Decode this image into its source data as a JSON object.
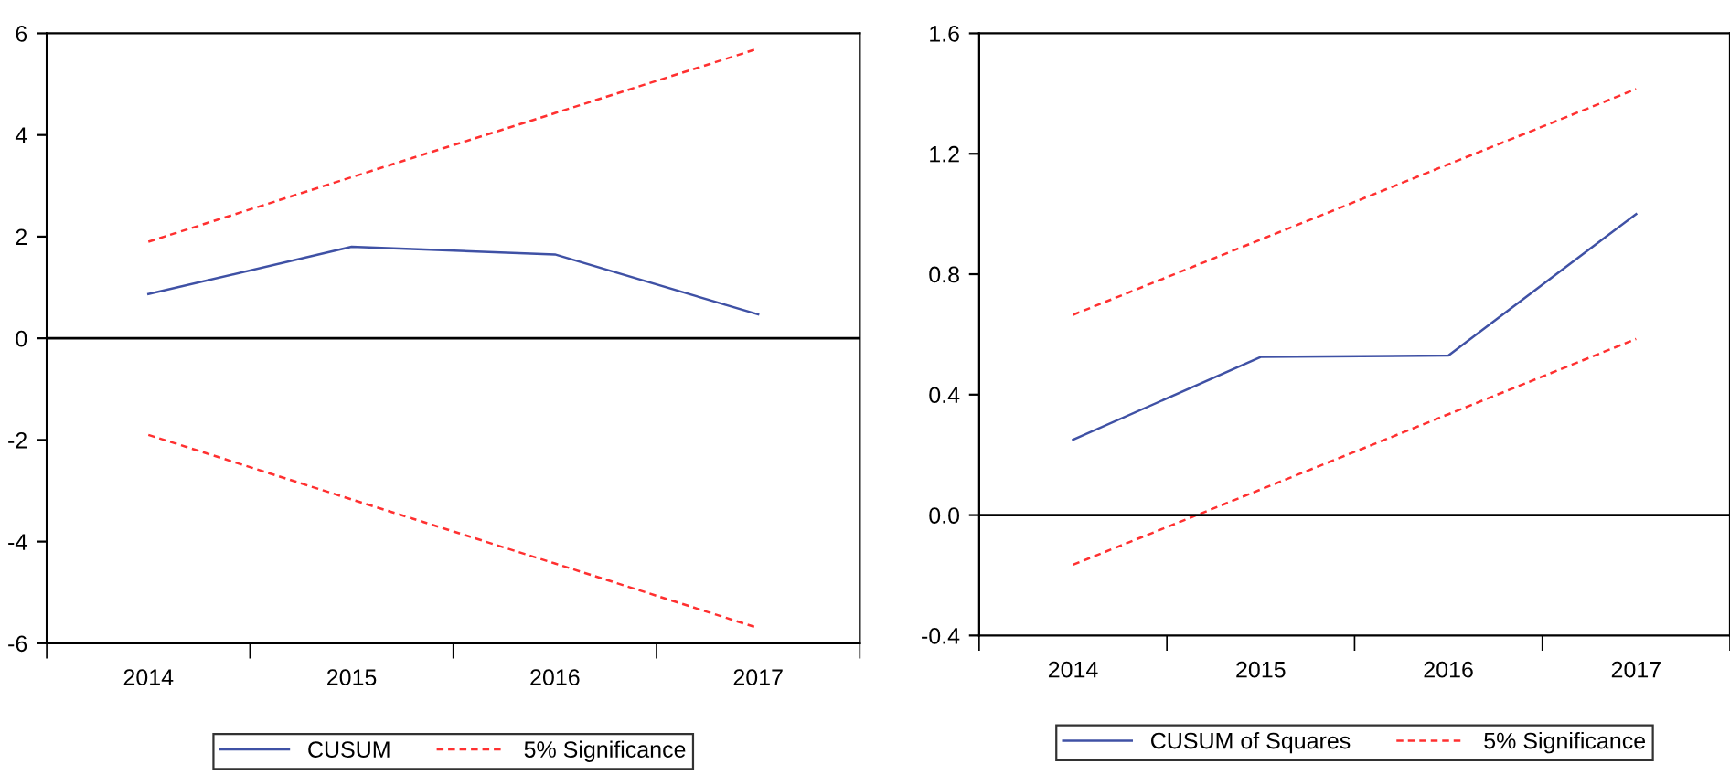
{
  "chart_data": [
    {
      "type": "line",
      "categories": [
        "2014",
        "2015",
        "2016",
        "2017"
      ],
      "ylim": [
        -6,
        6
      ],
      "yticks": [
        -6,
        -4,
        -2,
        0,
        2,
        4,
        6
      ],
      "grid": false,
      "legend": "bottom",
      "ref_lines": [
        {
          "axis": "y",
          "value": 0,
          "color": "#000000",
          "line_style": "solid"
        }
      ],
      "series": [
        {
          "name": "CUSUM",
          "color": "#3f51a5",
          "values": [
            0.87,
            1.8,
            1.65,
            0.47
          ],
          "line_style": "solid"
        },
        {
          "name": "5% Significance",
          "color": "#ff3030",
          "values": [
            1.9,
            3.17,
            4.43,
            5.7
          ],
          "line_style": "dashed"
        },
        {
          "color": "#ff3030",
          "values": [
            -1.9,
            -3.17,
            -4.43,
            -5.7
          ],
          "line_style": "dashed"
        }
      ]
    },
    {
      "type": "line",
      "categories": [
        "2014",
        "2015",
        "2016",
        "2017"
      ],
      "ylim": [
        -0.4,
        1.6
      ],
      "yticks": [
        {
          "value": -0.4,
          "label": "-0.4"
        },
        {
          "value": 0,
          "label": "0.0"
        },
        {
          "value": 0.4,
          "label": "0.4"
        },
        {
          "value": 0.8,
          "label": "0.8"
        },
        {
          "value": 1.2,
          "label": "1.2"
        },
        {
          "value": 1.6,
          "label": "1.6"
        }
      ],
      "grid": false,
      "legend": "bottom",
      "ref_lines": [
        {
          "axis": "y",
          "value": 0,
          "color": "#000000",
          "line_style": "solid"
        }
      ],
      "series": [
        {
          "name": "CUSUM of Squares",
          "color": "#3f51a5",
          "values": [
            0.25,
            0.525,
            0.53,
            1.0
          ],
          "line_style": "solid"
        },
        {
          "name": "5% Significance",
          "color": "#ff3030",
          "values": [
            0.665,
            0.915,
            1.165,
            1.415
          ],
          "line_style": "dashed"
        },
        {
          "color": "#ff3030",
          "values": [
            -0.165,
            0.085,
            0.335,
            0.585
          ],
          "line_style": "dashed"
        }
      ]
    }
  ]
}
